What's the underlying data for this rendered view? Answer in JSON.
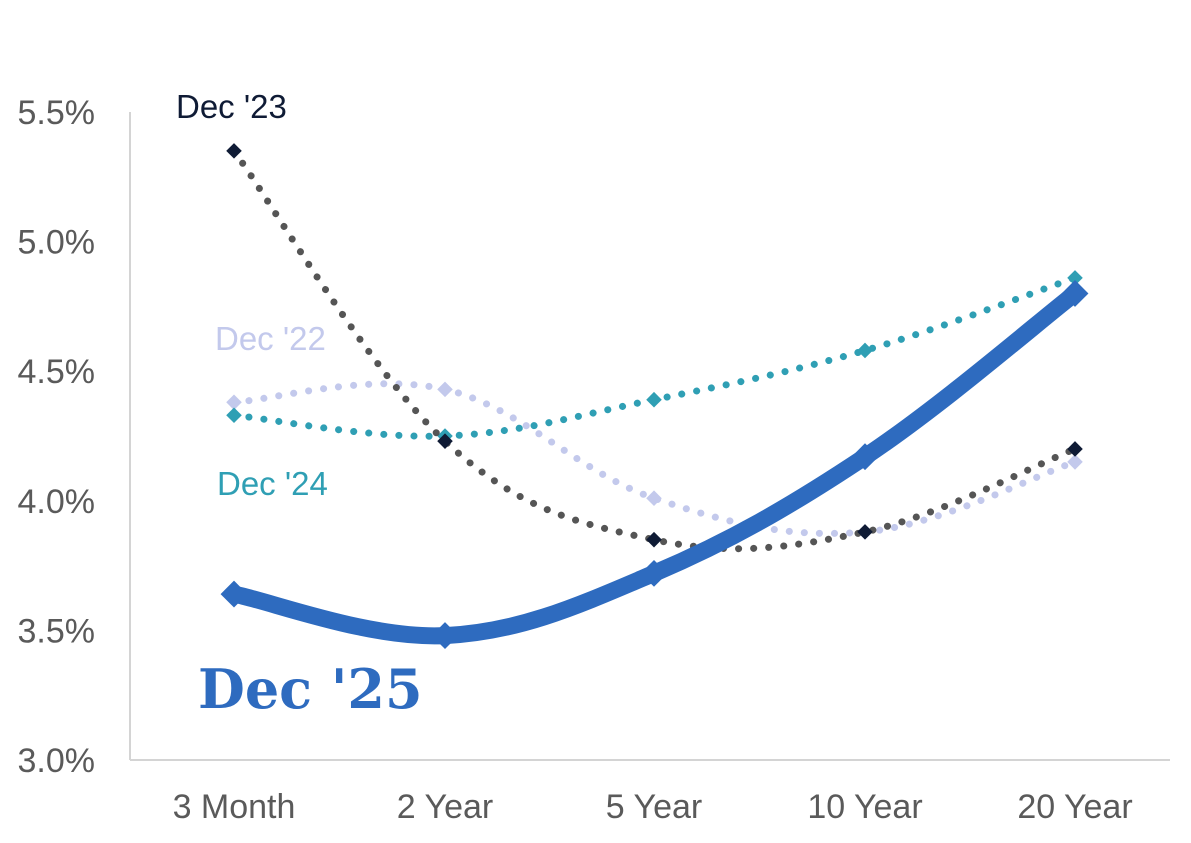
{
  "chart_data": {
    "type": "line",
    "title": "",
    "xlabel": "",
    "ylabel": "",
    "categories": [
      "3 Month",
      "2 Year",
      "5 Year",
      "10 Year",
      "20 Year"
    ],
    "ylim": [
      3.0,
      5.5
    ],
    "yticks": [
      3.0,
      3.5,
      4.0,
      4.5,
      5.0,
      5.5
    ],
    "ytick_labels": [
      "3.0%",
      "3.5%",
      "4.0%",
      "4.5%",
      "5.0%",
      "5.5%"
    ],
    "grid": false,
    "series": [
      {
        "name": "Dec '22",
        "values": [
          4.38,
          4.43,
          4.01,
          3.88,
          4.15
        ],
        "color": "#c3c9ec",
        "style": "dotted"
      },
      {
        "name": "Dec '24",
        "values": [
          4.33,
          4.25,
          4.39,
          4.58,
          4.86
        ],
        "color": "#2f9fb4",
        "style": "dotted"
      },
      {
        "name": "Dec '23",
        "values": [
          5.35,
          4.23,
          3.85,
          3.88,
          4.2
        ],
        "color": "#0f1b35",
        "style": "dotted",
        "line_color": "#555555"
      },
      {
        "name": "Dec '25",
        "values": [
          3.64,
          3.48,
          3.72,
          4.17,
          4.8
        ],
        "color": "#2e6bbf",
        "style": "solid"
      }
    ]
  }
}
